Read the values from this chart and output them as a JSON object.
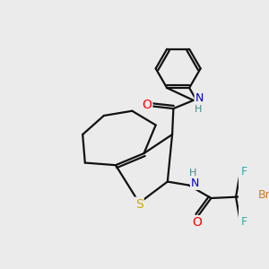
{
  "background_color": "#ebebeb",
  "atom_colors": {
    "O": "#ff0000",
    "N": "#0000cc",
    "S": "#ccaa00",
    "Br": "#cc7722",
    "F": "#33aaaa",
    "C": "#111111",
    "H": "#448888"
  },
  "bond_color": "#111111",
  "bond_width": 1.6,
  "figsize": [
    3.0,
    3.0
  ],
  "dpi": 100
}
